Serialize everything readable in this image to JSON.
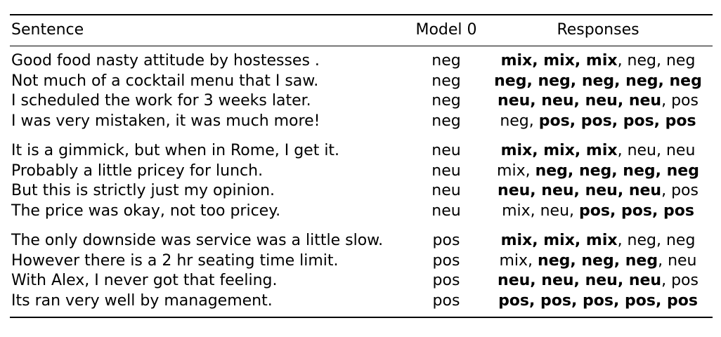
{
  "header": {
    "sentence": "Sentence",
    "model": "Model 0",
    "responses": "Responses"
  },
  "groups": [
    {
      "rows": [
        {
          "sentence": "Good food nasty attitude by hostesses .",
          "model": "neg",
          "responses": [
            {
              "text": "mix, mix, mix",
              "bold": true
            },
            {
              "text": ", neg, neg",
              "bold": false
            }
          ]
        },
        {
          "sentence": "Not much of a cocktail menu that I saw.",
          "model": "neg",
          "responses": [
            {
              "text": "neg, neg, neg, neg, neg",
              "bold": true
            }
          ]
        },
        {
          "sentence": "I scheduled the work for 3 weeks later.",
          "model": "neg",
          "responses": [
            {
              "text": "neu, neu, neu, neu",
              "bold": true
            },
            {
              "text": ", pos",
              "bold": false
            }
          ]
        },
        {
          "sentence": "I was very mistaken, it was much more!",
          "model": "neg",
          "responses": [
            {
              "text": "neg, ",
              "bold": false
            },
            {
              "text": "pos, pos, pos, pos",
              "bold": true
            }
          ]
        }
      ]
    },
    {
      "rows": [
        {
          "sentence": "It is a gimmick, but when in Rome, I get it.",
          "model": "neu",
          "responses": [
            {
              "text": "mix, mix, mix",
              "bold": true
            },
            {
              "text": ", neu, neu",
              "bold": false
            }
          ]
        },
        {
          "sentence": "Probably a little pricey for lunch.",
          "model": "neu",
          "responses": [
            {
              "text": "mix, ",
              "bold": false
            },
            {
              "text": "neg, neg, neg, neg",
              "bold": true
            }
          ]
        },
        {
          "sentence": "But this is strictly just my opinion.",
          "model": "neu",
          "responses": [
            {
              "text": "neu, neu, neu, neu",
              "bold": true
            },
            {
              "text": ", pos",
              "bold": false
            }
          ]
        },
        {
          "sentence": "The price was okay, not too pricey.",
          "model": "neu",
          "responses": [
            {
              "text": "mix, neu, ",
              "bold": false
            },
            {
              "text": "pos, pos, pos",
              "bold": true
            }
          ]
        }
      ]
    },
    {
      "rows": [
        {
          "sentence": "The only downside was service was a little slow.",
          "model": "pos",
          "responses": [
            {
              "text": "mix, mix, mix",
              "bold": true
            },
            {
              "text": ", neg, neg",
              "bold": false
            }
          ]
        },
        {
          "sentence": "However there is a 2 hr seating time limit.",
          "model": "pos",
          "responses": [
            {
              "text": "mix, ",
              "bold": false
            },
            {
              "text": "neg, neg, neg",
              "bold": true
            },
            {
              "text": ", neu",
              "bold": false
            }
          ]
        },
        {
          "sentence": "With Alex, I never got that feeling.",
          "model": "pos",
          "responses": [
            {
              "text": "neu, neu, neu, neu",
              "bold": true
            },
            {
              "text": ", pos",
              "bold": false
            }
          ]
        },
        {
          "sentence": "Its ran very well by management.",
          "model": "pos",
          "responses": [
            {
              "text": "pos, pos, pos, pos, pos",
              "bold": true
            }
          ]
        }
      ]
    }
  ]
}
